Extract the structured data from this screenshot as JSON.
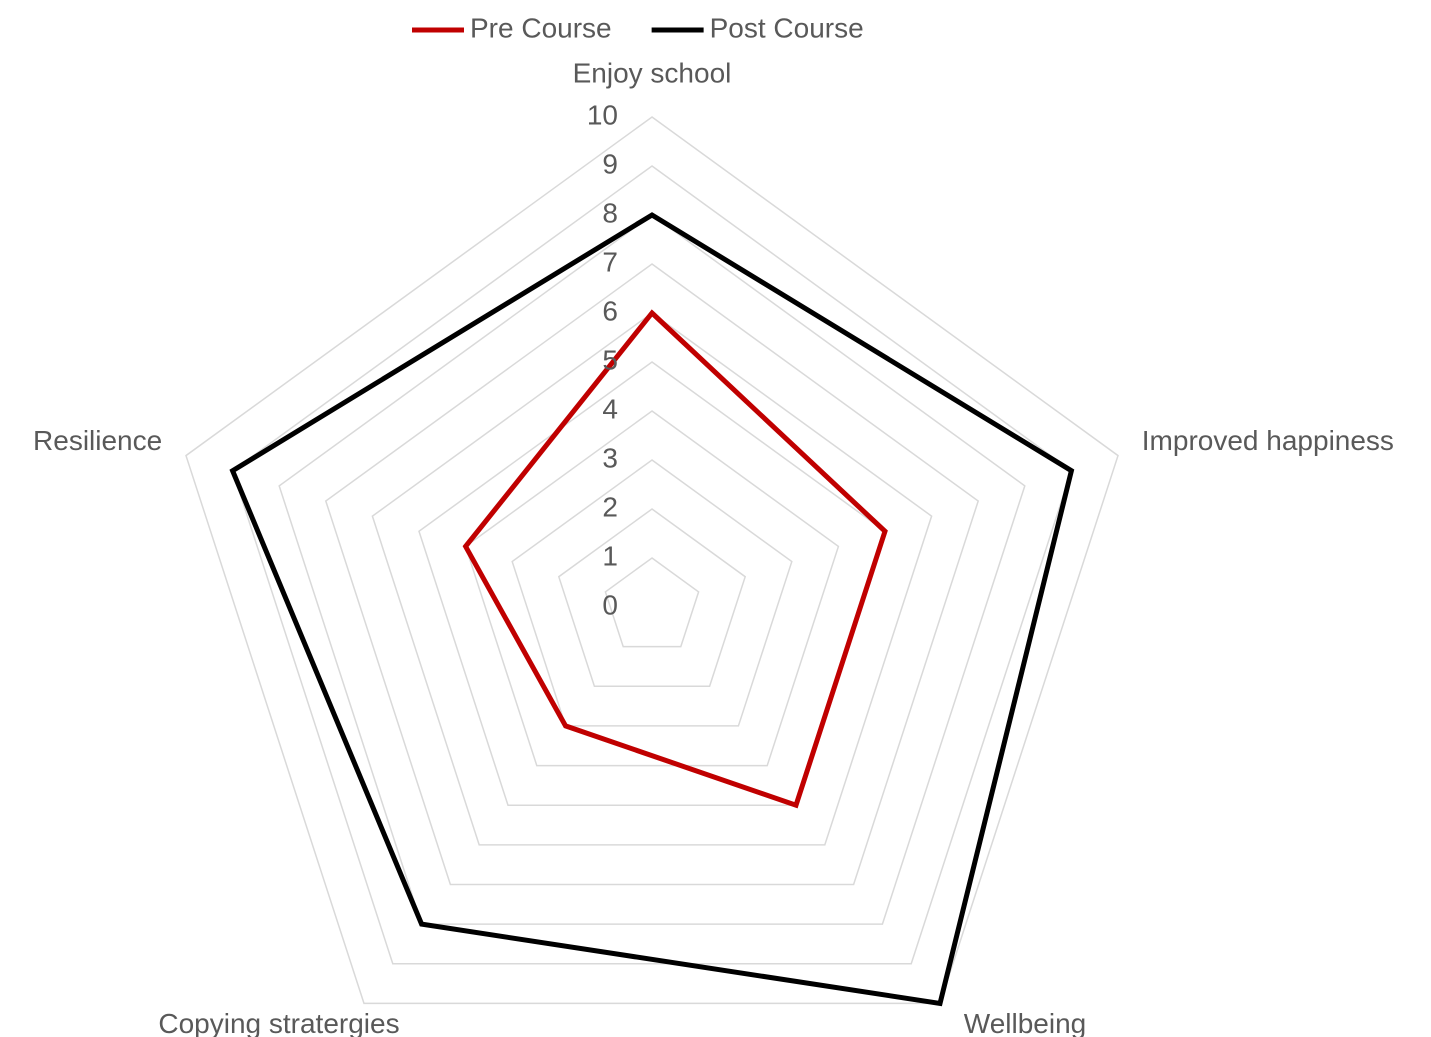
{
  "chart_data": {
    "type": "radar",
    "categories": [
      "Enjoy school",
      "Improved happiness",
      "Wellbeing",
      "Copying stratergies",
      "Resilience"
    ],
    "series": [
      {
        "name": "Pre Course",
        "color": "#c00000",
        "values": [
          6,
          5,
          5,
          3,
          4
        ]
      },
      {
        "name": "Post Course",
        "color": "#000000",
        "values": [
          8,
          9,
          10,
          8,
          9
        ]
      }
    ],
    "ylim": [
      0,
      10
    ],
    "yticks": [
      0,
      1,
      2,
      3,
      4,
      5,
      6,
      7,
      8,
      9,
      10
    ],
    "grid": true,
    "legend": "top"
  }
}
